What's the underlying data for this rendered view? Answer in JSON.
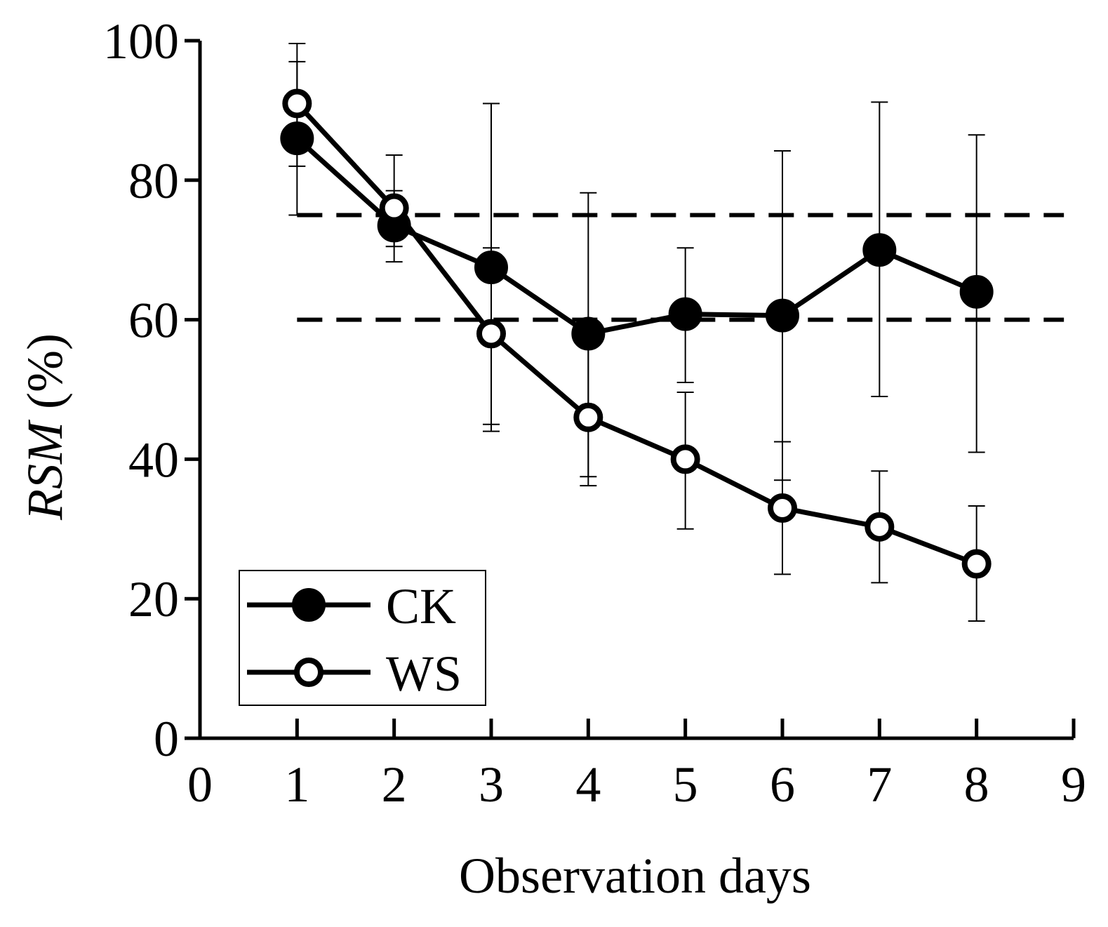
{
  "chart_data": {
    "type": "line",
    "title": "",
    "xlabel": "Observation days",
    "ylabel_italic": "RSM",
    "ylabel_suffix": " (%)",
    "xlim": [
      0,
      9
    ],
    "ylim": [
      0,
      100
    ],
    "xticks": [
      0,
      1,
      2,
      3,
      4,
      5,
      6,
      7,
      8,
      9
    ],
    "yticks": [
      0,
      20,
      40,
      60,
      80,
      100
    ],
    "grid": false,
    "legend_position": "bottom-left",
    "reference_lines": [
      {
        "y": 75,
        "x_start": 1,
        "x_end": 8.9,
        "style": "dashed"
      },
      {
        "y": 60,
        "x_start": 1,
        "x_end": 8.9,
        "style": "dashed"
      }
    ],
    "series": [
      {
        "name": "CK",
        "marker": "filled-circle",
        "x": [
          1,
          2,
          3,
          4,
          5,
          6,
          7,
          8
        ],
        "y": [
          86,
          73.5,
          67.5,
          58,
          60.8,
          60.6,
          70,
          64
        ],
        "err_low": [
          75,
          68.3,
          44,
          36.2,
          51,
          37,
          49,
          41
        ],
        "err_high": [
          97,
          78.5,
          91,
          78.2,
          70.3,
          84.2,
          91.2,
          86.5
        ]
      },
      {
        "name": "WS",
        "marker": "open-circle",
        "x": [
          1,
          2,
          3,
          4,
          5,
          6,
          7,
          8
        ],
        "y": [
          91,
          76,
          58,
          46,
          40,
          33,
          30.3,
          25
        ],
        "err_low": [
          82,
          70.5,
          45,
          37.5,
          30,
          23.5,
          22.3,
          16.8
        ],
        "err_high": [
          99.6,
          83.6,
          70.3,
          56.3,
          49.6,
          42.5,
          38.3,
          33.3
        ]
      }
    ]
  }
}
